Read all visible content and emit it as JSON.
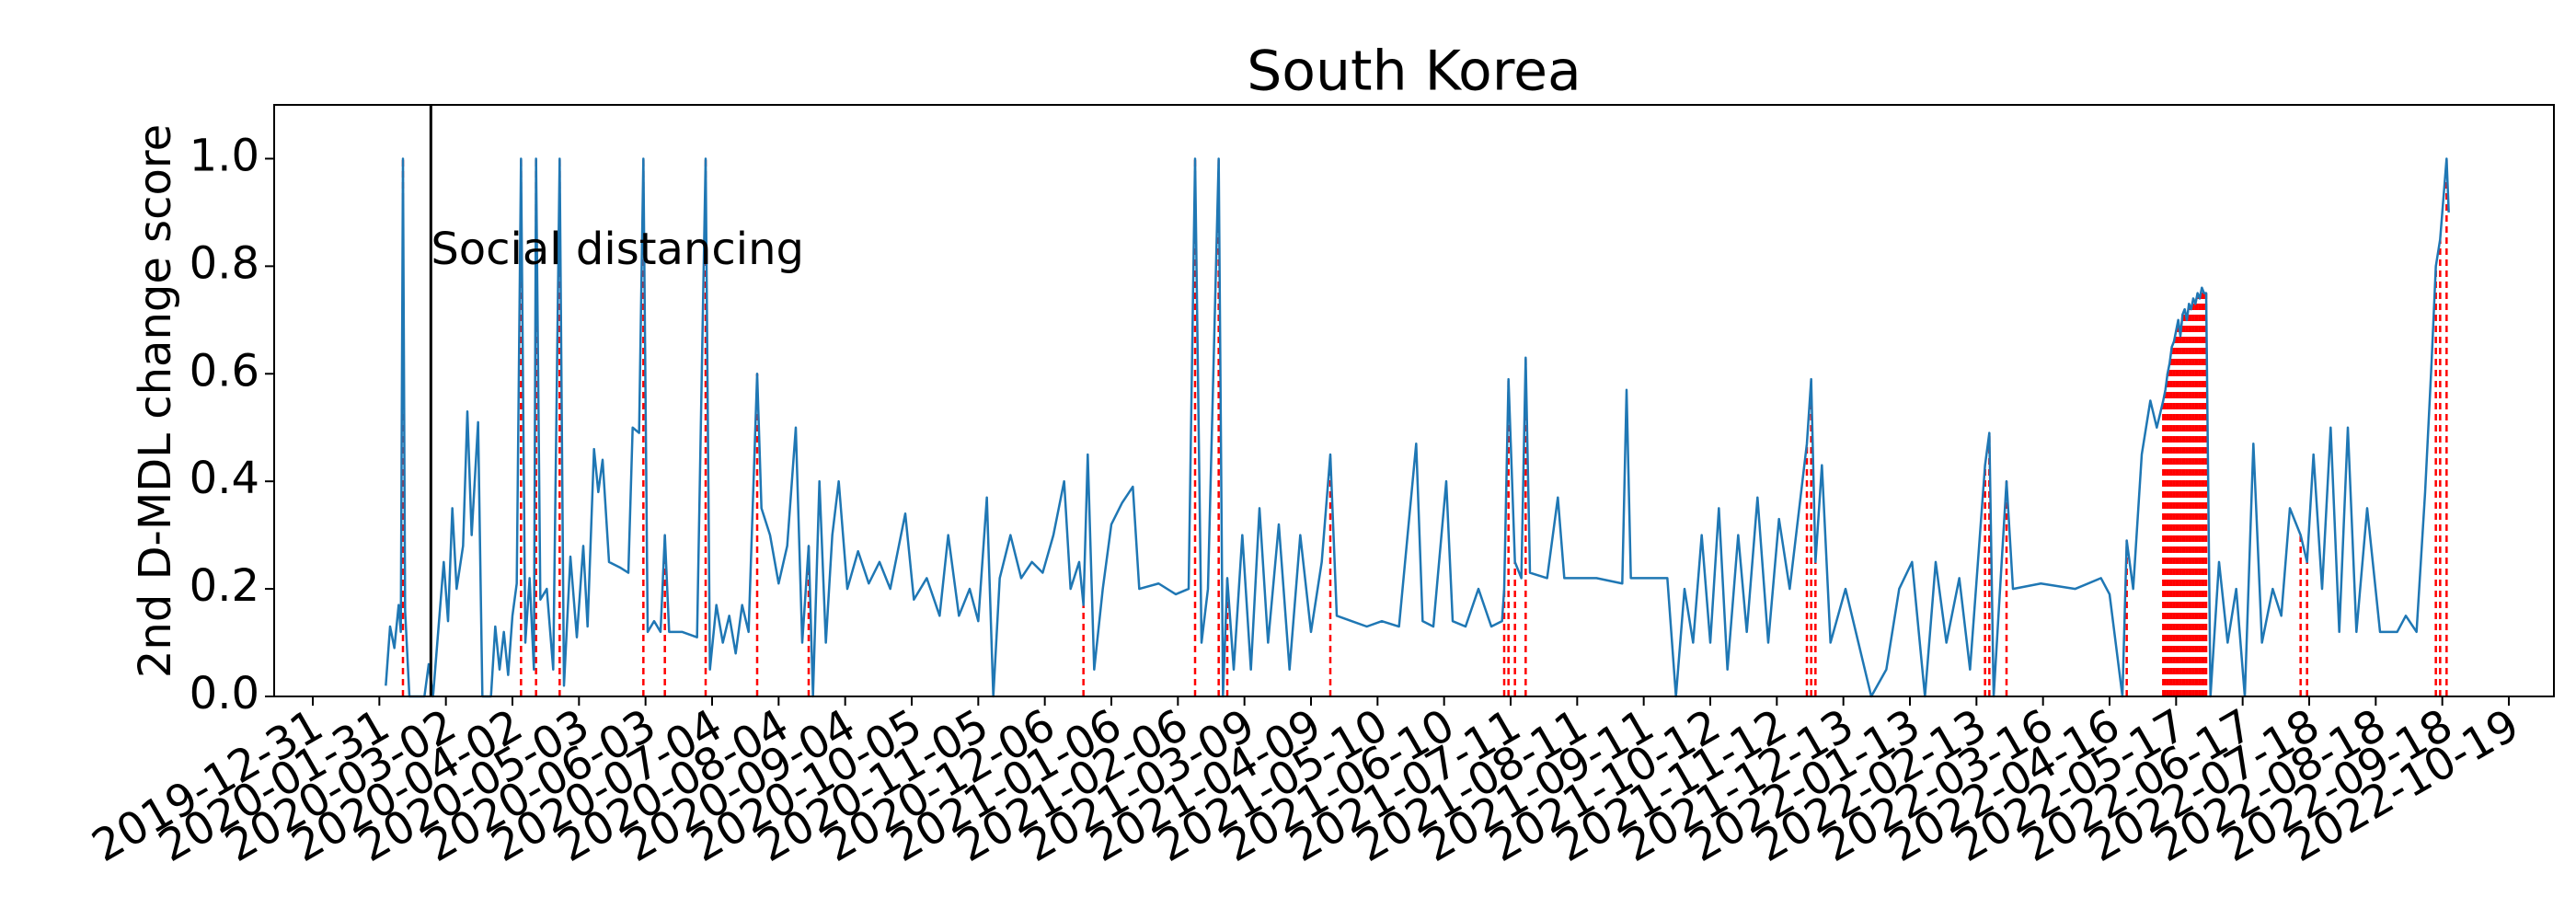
{
  "chart_data": {
    "type": "line",
    "title": "South Korea",
    "ylabel": "2nd D-MDL change score",
    "color": "#1f77b4",
    "change_color": "#ff0000",
    "xlim": [
      "2019-12-13",
      "2022-11-09"
    ],
    "ylim": [
      0,
      1.1
    ],
    "yticks": [
      {
        "value": 0,
        "label": "0.0"
      },
      0.2,
      0.4,
      0.6,
      0.8,
      {
        "value": 1,
        "label": "1.0"
      }
    ],
    "xticks": [
      "2019-12-31",
      "2020-01-31",
      "2020-03-02",
      "2020-04-02",
      "2020-05-03",
      "2020-06-03",
      "2020-07-04",
      "2020-08-04",
      "2020-09-04",
      "2020-10-05",
      "2020-11-05",
      "2020-12-06",
      "2021-01-06",
      "2021-02-06",
      "2021-03-09",
      "2021-04-09",
      "2021-05-10",
      "2021-06-10",
      "2021-07-11",
      "2021-08-11",
      "2021-09-11",
      "2021-10-12",
      "2021-11-12",
      "2021-12-13",
      "2022-01-13",
      "2022-02-13",
      "2022-03-16",
      "2022-04-16",
      "2022-05-17",
      "2022-06-17",
      "2022-07-18",
      "2022-08-18",
      "2022-09-18",
      "2022-10-19"
    ],
    "annotations": [
      {
        "x": "2020-02-24",
        "text": "Social distancing"
      }
    ],
    "x": [
      "2020-02-03",
      "2020-02-05",
      "2020-02-07",
      "2020-02-09",
      "2020-02-10",
      "2020-02-11",
      "2020-02-12",
      "2020-02-14",
      "2020-02-21",
      "2020-02-23",
      "2020-02-25",
      "2020-03-01",
      "2020-03-03",
      "2020-03-05",
      "2020-03-07",
      "2020-03-10",
      "2020-03-12",
      "2020-03-14",
      "2020-03-17",
      "2020-03-19",
      "2020-03-23",
      "2020-03-25",
      "2020-03-27",
      "2020-03-29",
      "2020-03-31",
      "2020-04-02",
      "2020-04-04",
      "2020-04-06",
      "2020-04-08",
      "2020-04-10",
      "2020-04-12",
      "2020-04-13",
      "2020-04-15",
      "2020-04-18",
      "2020-04-21",
      "2020-04-24",
      "2020-04-26",
      "2020-04-29",
      "2020-05-02",
      "2020-05-05",
      "2020-05-07",
      "2020-05-10",
      "2020-05-12",
      "2020-05-14",
      "2020-05-17",
      "2020-05-22",
      "2020-05-26",
      "2020-05-28",
      "2020-05-31",
      "2020-06-02",
      "2020-06-04",
      "2020-06-07",
      "2020-06-10",
      "2020-06-12",
      "2020-06-14",
      "2020-06-20",
      "2020-06-27",
      "2020-07-01",
      "2020-07-03",
      "2020-07-06",
      "2020-07-09",
      "2020-07-12",
      "2020-07-15",
      "2020-07-18",
      "2020-07-21",
      "2020-07-25",
      "2020-07-27",
      "2020-07-31",
      "2020-08-04",
      "2020-08-08",
      "2020-08-12",
      "2020-08-15",
      "2020-08-18",
      "2020-08-20",
      "2020-08-23",
      "2020-08-26",
      "2020-08-29",
      "2020-09-01",
      "2020-09-05",
      "2020-09-10",
      "2020-09-15",
      "2020-09-20",
      "2020-09-25",
      "2020-10-02",
      "2020-10-06",
      "2020-10-12",
      "2020-10-18",
      "2020-10-22",
      "2020-10-27",
      "2020-11-01",
      "2020-11-05",
      "2020-11-09",
      "2020-11-12",
      "2020-11-15",
      "2020-11-20",
      "2020-11-25",
      "2020-11-30",
      "2020-12-05",
      "2020-12-10",
      "2020-12-15",
      "2020-12-18",
      "2020-12-22",
      "2020-12-24",
      "2020-12-26",
      "2020-12-29",
      "2021-01-02",
      "2021-01-06",
      "2021-01-11",
      "2021-01-16",
      "2021-01-19",
      "2021-01-28",
      "2021-02-05",
      "2021-02-11",
      "2021-02-14",
      "2021-02-17",
      "2021-02-20",
      "2021-02-25",
      "2021-02-27",
      "2021-03-01",
      "2021-03-04",
      "2021-03-08",
      "2021-03-12",
      "2021-03-16",
      "2021-03-20",
      "2021-03-25",
      "2021-03-30",
      "2021-04-04",
      "2021-04-09",
      "2021-04-14",
      "2021-04-18",
      "2021-04-21",
      "2021-04-28",
      "2021-05-05",
      "2021-05-12",
      "2021-05-20",
      "2021-05-28",
      "2021-05-31",
      "2021-06-05",
      "2021-06-11",
      "2021-06-14",
      "2021-06-20",
      "2021-06-26",
      "2021-07-02",
      "2021-07-07",
      "2021-07-08",
      "2021-07-10",
      "2021-07-13",
      "2021-07-16",
      "2021-07-18",
      "2021-07-20",
      "2021-07-28",
      "2021-08-02",
      "2021-08-05",
      "2021-08-20",
      "2021-09-01",
      "2021-09-03",
      "2021-09-05",
      "2021-09-15",
      "2021-09-22",
      "2021-09-26",
      "2021-09-30",
      "2021-10-04",
      "2021-10-08",
      "2021-10-12",
      "2021-10-16",
      "2021-10-20",
      "2021-10-25",
      "2021-10-29",
      "2021-11-03",
      "2021-11-08",
      "2021-11-13",
      "2021-11-18",
      "2021-11-26",
      "2021-11-28",
      "2021-11-30",
      "2021-12-03",
      "2021-12-07",
      "2021-12-14",
      "2021-12-20",
      "2021-12-26",
      "2022-01-02",
      "2022-01-08",
      "2022-01-14",
      "2022-01-20",
      "2022-01-25",
      "2022-01-30",
      "2022-02-05",
      "2022-02-10",
      "2022-02-17",
      "2022-02-19",
      "2022-02-21",
      "2022-02-27",
      "2022-03-02",
      "2022-03-15",
      "2022-03-31",
      "2022-04-12",
      "2022-04-16",
      "2022-04-22",
      "2022-04-24",
      "2022-04-27",
      "2022-05-01",
      "2022-05-05",
      "2022-05-08",
      "2022-05-11",
      "2022-05-12",
      "2022-05-13",
      "2022-05-14",
      "2022-05-15",
      "2022-05-16",
      "2022-05-17",
      "2022-05-18",
      "2022-05-19",
      "2022-05-20",
      "2022-05-21",
      "2022-05-22",
      "2022-05-23",
      "2022-05-24",
      "2022-05-25",
      "2022-05-26",
      "2022-05-27",
      "2022-05-28",
      "2022-05-29",
      "2022-05-30",
      "2022-05-31",
      "2022-06-02",
      "2022-06-06",
      "2022-06-10",
      "2022-06-14",
      "2022-06-18",
      "2022-06-22",
      "2022-06-26",
      "2022-07-01",
      "2022-07-05",
      "2022-07-09",
      "2022-07-14",
      "2022-07-17",
      "2022-07-20",
      "2022-07-24",
      "2022-07-28",
      "2022-08-01",
      "2022-08-05",
      "2022-08-09",
      "2022-08-14",
      "2022-08-20",
      "2022-08-28",
      "2022-09-01",
      "2022-09-06",
      "2022-09-10",
      "2022-09-13",
      "2022-09-15",
      "2022-09-17",
      "2022-09-20",
      "2022-09-21"
    ],
    "values": [
      0.02,
      0.13,
      0.09,
      0.17,
      0.12,
      1.0,
      0.16,
      0.0,
      0.0,
      0.06,
      0.0,
      0.25,
      0.14,
      0.35,
      0.2,
      0.28,
      0.53,
      0.3,
      0.51,
      0.0,
      0.0,
      0.13,
      0.05,
      0.12,
      0.04,
      0.15,
      0.21,
      1.0,
      0.1,
      0.22,
      0.05,
      1.0,
      0.18,
      0.2,
      0.05,
      1.0,
      0.02,
      0.26,
      0.11,
      0.28,
      0.13,
      0.46,
      0.38,
      0.44,
      0.25,
      0.24,
      0.23,
      0.5,
      0.49,
      1.0,
      0.12,
      0.14,
      0.12,
      0.3,
      0.12,
      0.12,
      0.11,
      1.0,
      0.05,
      0.17,
      0.1,
      0.15,
      0.08,
      0.17,
      0.12,
      0.6,
      0.35,
      0.3,
      0.21,
      0.28,
      0.5,
      0.1,
      0.28,
      0.0,
      0.4,
      0.1,
      0.3,
      0.4,
      0.2,
      0.27,
      0.21,
      0.25,
      0.2,
      0.34,
      0.18,
      0.22,
      0.15,
      0.3,
      0.15,
      0.2,
      0.14,
      0.37,
      0.0,
      0.22,
      0.3,
      0.22,
      0.25,
      0.23,
      0.3,
      0.4,
      0.2,
      0.25,
      0.17,
      0.45,
      0.05,
      0.2,
      0.32,
      0.36,
      0.39,
      0.2,
      0.21,
      0.19,
      0.2,
      1.0,
      0.1,
      0.2,
      1.0,
      0.0,
      0.22,
      0.05,
      0.3,
      0.05,
      0.35,
      0.1,
      0.32,
      0.05,
      0.3,
      0.12,
      0.25,
      0.45,
      0.15,
      0.14,
      0.13,
      0.14,
      0.13,
      0.47,
      0.14,
      0.13,
      0.4,
      0.14,
      0.13,
      0.2,
      0.13,
      0.14,
      0.2,
      0.59,
      0.25,
      0.22,
      0.63,
      0.23,
      0.22,
      0.37,
      0.22,
      0.22,
      0.21,
      0.57,
      0.22,
      0.22,
      0.22,
      0.0,
      0.2,
      0.1,
      0.3,
      0.1,
      0.35,
      0.05,
      0.3,
      0.12,
      0.37,
      0.1,
      0.33,
      0.2,
      0.47,
      0.59,
      0.25,
      0.43,
      0.1,
      0.2,
      0.1,
      0.0,
      0.05,
      0.2,
      0.25,
      0.0,
      0.25,
      0.1,
      0.22,
      0.05,
      0.43,
      0.49,
      0.0,
      0.4,
      0.2,
      0.21,
      0.2,
      0.22,
      0.19,
      0.0,
      0.29,
      0.2,
      0.45,
      0.55,
      0.5,
      0.55,
      0.57,
      0.6,
      0.62,
      0.65,
      0.66,
      0.68,
      0.7,
      0.67,
      0.71,
      0.72,
      0.7,
      0.73,
      0.72,
      0.74,
      0.73,
      0.75,
      0.74,
      0.76,
      0.75,
      0.75,
      0.0,
      0.25,
      0.1,
      0.2,
      0.0,
      0.47,
      0.1,
      0.2,
      0.15,
      0.35,
      0.3,
      0.25,
      0.45,
      0.2,
      0.5,
      0.12,
      0.5,
      0.12,
      0.35,
      0.12,
      0.12,
      0.15,
      0.12,
      0.38,
      0.62,
      0.8,
      0.85,
      1.0,
      0.9
    ],
    "change_points": [
      "2020-02-11",
      "2020-04-06",
      "2020-04-13",
      "2020-04-24",
      "2020-06-02",
      "2020-06-12",
      "2020-07-01",
      "2020-07-25",
      "2020-08-18",
      "2020-12-24",
      "2021-02-14",
      "2021-02-25",
      "2021-03-01",
      "2021-04-18",
      "2021-07-08",
      "2021-07-10",
      "2021-07-13",
      "2021-07-18",
      "2021-11-26",
      "2021-11-28",
      "2021-11-30",
      "2022-02-17",
      "2022-02-19",
      "2022-02-27",
      "2022-04-24",
      "2022-05-11",
      "2022-05-12",
      "2022-05-13",
      "2022-05-14",
      "2022-05-15",
      "2022-05-16",
      "2022-05-17",
      "2022-05-18",
      "2022-05-19",
      "2022-05-20",
      "2022-05-21",
      "2022-05-22",
      "2022-05-23",
      "2022-05-24",
      "2022-05-25",
      "2022-05-26",
      "2022-05-27",
      "2022-05-28",
      "2022-05-29",
      "2022-05-30",
      "2022-05-31",
      "2022-07-14",
      "2022-07-17",
      "2022-09-15",
      "2022-09-17",
      "2022-09-20"
    ]
  }
}
